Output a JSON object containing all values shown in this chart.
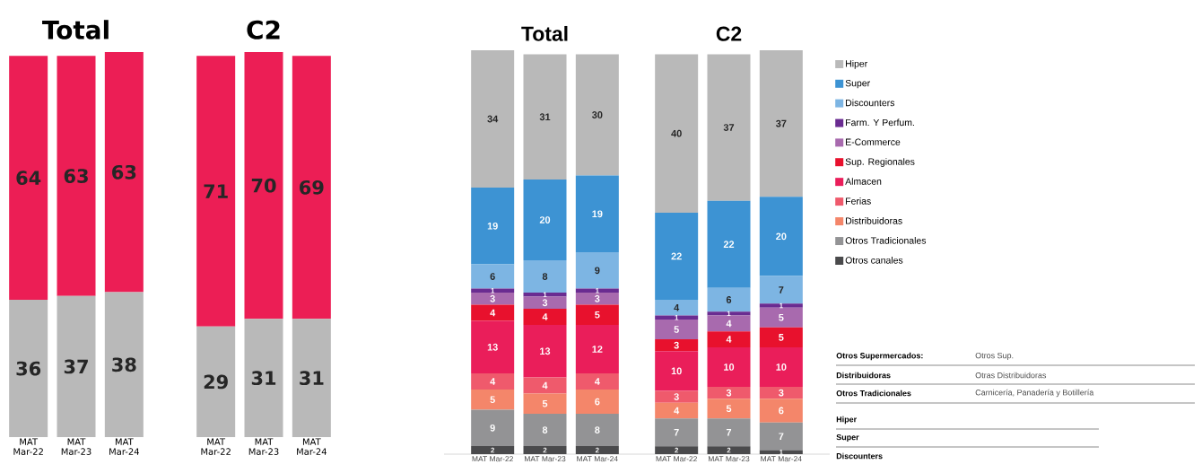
{
  "chart_data": [
    {
      "type": "bar",
      "title": "Total",
      "stacked": true,
      "data_labels": true,
      "categories": [
        "MAT Mar-22",
        "MAT Mar-23",
        "MAT Mar-24"
      ],
      "series": [
        {
          "color": "#b9b9b9",
          "values": [
            36,
            37,
            38
          ]
        },
        {
          "color": "#ec1e55",
          "values": [
            64,
            63,
            63
          ]
        }
      ]
    },
    {
      "type": "bar",
      "title": "C2",
      "stacked": true,
      "data_labels": true,
      "categories": [
        "MAT Mar-22",
        "MAT Mar-23",
        "MAT Mar-24"
      ],
      "series": [
        {
          "color": "#b9b9b9",
          "values": [
            29,
            31,
            31
          ]
        },
        {
          "color": "#ec1e55",
          "values": [
            71,
            70,
            69
          ]
        }
      ]
    },
    {
      "type": "bar",
      "title": "Total",
      "stacked": true,
      "data_labels": true,
      "categories": [
        "MAT Mar-22",
        "MAT Mar-23",
        "MAT Mar-24"
      ],
      "series": [
        {
          "color": "#4a4a4c",
          "values": [
            2,
            2,
            2
          ]
        },
        {
          "color": "#939395",
          "values": [
            9,
            8,
            8
          ]
        },
        {
          "color": "#f4866a",
          "values": [
            5,
            5,
            6
          ]
        },
        {
          "color": "#ef5a6c",
          "values": [
            4,
            4,
            4
          ]
        },
        {
          "color": "#ea1e5a",
          "values": [
            13,
            13,
            12
          ]
        },
        {
          "color": "#e8112d",
          "values": [
            4,
            4,
            5
          ]
        },
        {
          "color": "#a86aae",
          "values": [
            3,
            3,
            3
          ]
        },
        {
          "color": "#6a2c91",
          "values": [
            1,
            1,
            1
          ]
        },
        {
          "color": "#7db5e3",
          "values": [
            6,
            8,
            9
          ]
        },
        {
          "color": "#3d93d3",
          "values": [
            19,
            20,
            19
          ]
        },
        {
          "color": "#b9b9b9",
          "values": [
            34,
            31,
            30
          ]
        }
      ]
    },
    {
      "type": "bar",
      "title": "C2",
      "stacked": true,
      "data_labels": true,
      "legend": "right",
      "categories": [
        "MAT Mar-22",
        "MAT Mar-23",
        "MAT Mar-24"
      ],
      "series": [
        {
          "name": "Otros canales",
          "color": "#4a4a4c",
          "values": [
            2,
            2,
            1
          ]
        },
        {
          "name": "Otros Tradicionales",
          "color": "#939395",
          "values": [
            7,
            7,
            7
          ]
        },
        {
          "name": "Distribuidoras",
          "color": "#f4866a",
          "values": [
            4,
            5,
            6
          ]
        },
        {
          "name": "Ferias",
          "color": "#ef5a6c",
          "values": [
            3,
            3,
            3
          ]
        },
        {
          "name": "Almacen",
          "color": "#ea1e5a",
          "values": [
            10,
            10,
            10
          ]
        },
        {
          "name": "Sup. Regionales",
          "color": "#e8112d",
          "values": [
            3,
            4,
            5
          ]
        },
        {
          "name": "E-Commerce",
          "color": "#a86aae",
          "values": [
            5,
            4,
            5
          ]
        },
        {
          "name": "Farm. Y Perfum.",
          "color": "#6a2c91",
          "values": [
            1,
            1,
            1
          ]
        },
        {
          "name": "Discounters",
          "color": "#7db5e3",
          "values": [
            4,
            6,
            7
          ]
        },
        {
          "name": "Super",
          "color": "#3d93d3",
          "values": [
            22,
            22,
            20
          ]
        },
        {
          "name": "Hiper",
          "color": "#b9b9b9",
          "values": [
            40,
            37,
            37
          ]
        }
      ],
      "annotations": [
        "Otros Supermercados:",
        "Otros Sup.",
        "Distribuidoras",
        "Otras Distribuidoras",
        "Otros Tradicionales",
        "Carnicería, Panadería y Botillería",
        "Hiper",
        "Super",
        "Discounters"
      ]
    }
  ]
}
